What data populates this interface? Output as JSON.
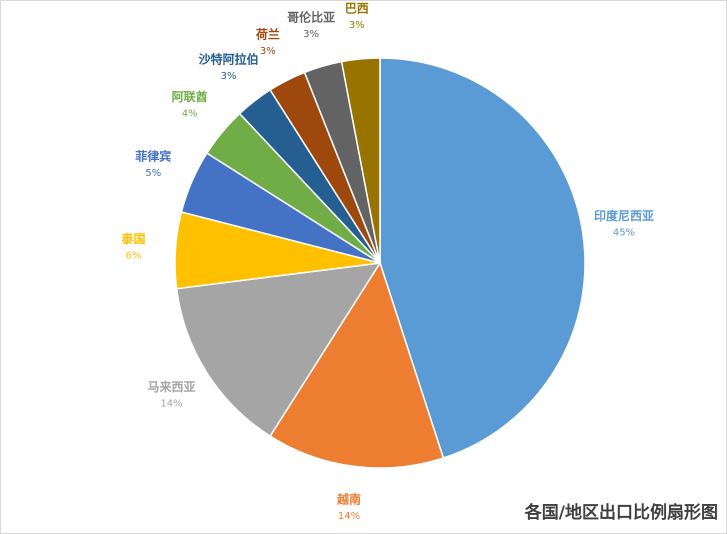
{
  "chart_data": {
    "type": "pie",
    "title": "各国/地区出口比例扇形图",
    "categories": [
      "印度尼西亚",
      "越南",
      "马来西亚",
      "泰国",
      "菲律宾",
      "阿联酋",
      "沙特阿拉伯",
      "荷兰",
      "哥伦比亚",
      "巴西"
    ],
    "values": [
      45,
      14,
      14,
      6,
      5,
      4,
      3,
      3,
      3,
      3
    ],
    "value_labels": [
      "45%",
      "14%",
      "14%",
      "6%",
      "5%",
      "4%",
      "3%",
      "3%",
      "3%",
      "3%"
    ],
    "colors": [
      "#5b9bd5",
      "#ed7d31",
      "#a5a5a5",
      "#ffc000",
      "#4472c4",
      "#70ad47",
      "#255e91",
      "#9e480e",
      "#636363",
      "#997300"
    ]
  }
}
